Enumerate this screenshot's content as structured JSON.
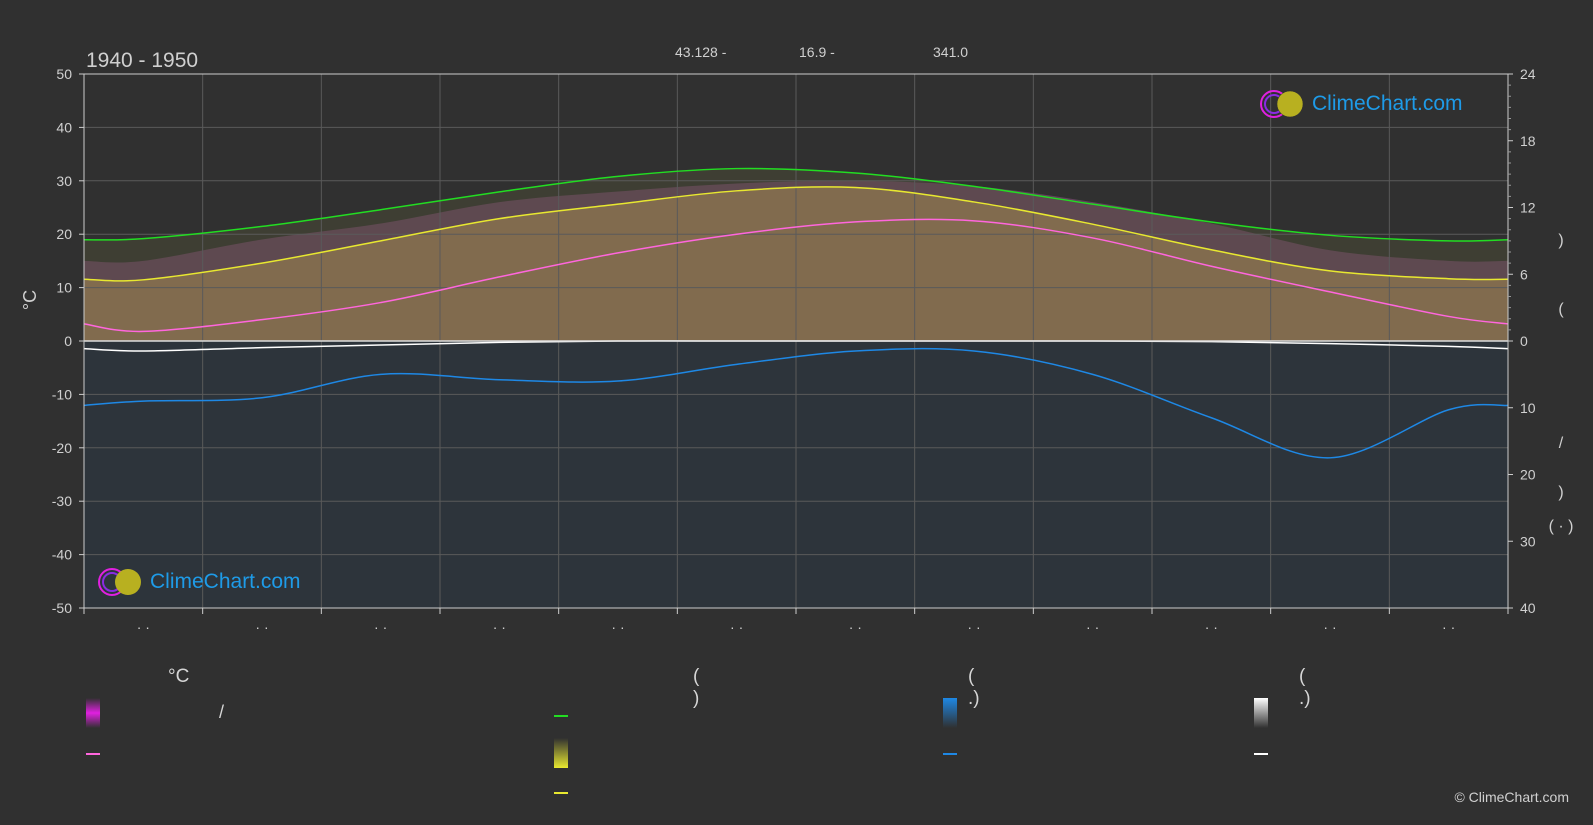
{
  "header": {
    "period": "1940 - 1950",
    "coords": [
      "43.128 -",
      "16.9 -",
      "341.0"
    ]
  },
  "brand": {
    "logo_text": "ClimeChart.com",
    "copyright": "© ClimeChart.com"
  },
  "legend": {
    "temp_head": "°C",
    "sun_head": "(          )",
    "rain_head": "(   .)",
    "snow_head": "(   .)",
    "slash": "/"
  },
  "colors": {
    "background": "#303030",
    "grid": "#5a5a5a",
    "daylight": "#22dd22",
    "sunshine": "#e8e830",
    "sunshine_band": "#8b8b2c",
    "temp_max_band": "#c060b0",
    "temp_mean": "#ff66dd",
    "precip": "#1e88e5",
    "snow": "#ffffff",
    "accent_magenta": "#e020e0",
    "logo_blue": "#1e9be8"
  },
  "chart_data": {
    "type": "line",
    "title": "1940 - 1950",
    "ylabel": "°C",
    "ylim": [
      -50,
      50
    ],
    "yticks": [
      50,
      40,
      30,
      20,
      10,
      0,
      -10,
      -20,
      -30,
      -40,
      -50
    ],
    "y2_upper_ticks": [
      24,
      18,
      12,
      6,
      0
    ],
    "y2_lower_ticks": [
      10,
      20,
      30,
      40
    ],
    "month_tick_labels": [
      "· ·",
      "· ·",
      "· ·",
      "· ·",
      "· ·",
      "· ·",
      "· ·",
      "· ·",
      "· ·",
      "· ·",
      "· ·",
      "· ·"
    ],
    "months": 12,
    "series": [
      {
        "key": "daylight",
        "unit": "hours",
        "axis": "right-upper",
        "values": [
          9.2,
          10.3,
          11.8,
          13.4,
          14.8,
          15.5,
          15.1,
          13.9,
          12.3,
          10.7,
          9.5,
          9.0
        ]
      },
      {
        "key": "sunshine",
        "unit": "hours",
        "axis": "right-upper",
        "values": [
          5.5,
          7.0,
          9.0,
          11.0,
          12.3,
          13.5,
          13.8,
          12.5,
          10.5,
          8.2,
          6.3,
          5.6
        ]
      },
      {
        "key": "temp_mean",
        "unit": "°C",
        "axis": "left",
        "values": [
          1.8,
          4.0,
          7.2,
          12.0,
          16.5,
          20.0,
          22.3,
          22.5,
          19.3,
          14.0,
          9.2,
          4.6
        ]
      },
      {
        "key": "temp_max_top",
        "unit": "°C",
        "axis": "left",
        "values": [
          15.0,
          19.0,
          22.0,
          26.0,
          28.0,
          29.5,
          30.0,
          29.0,
          26.0,
          22.0,
          17.0,
          15.0
        ]
      },
      {
        "key": "precip",
        "unit": "mm/day",
        "axis": "right-lower",
        "values": [
          -9.0,
          -8.5,
          -5.0,
          -5.8,
          -6.0,
          -3.5,
          -1.5,
          -1.5,
          -5.0,
          -11.5,
          -17.5,
          -10.3
        ]
      },
      {
        "key": "snow",
        "unit": "cm/day",
        "axis": "right-lower",
        "values": [
          -1.5,
          -1.0,
          -0.6,
          -0.2,
          0,
          0,
          0,
          0,
          0,
          -0.1,
          -0.4,
          -0.8
        ]
      }
    ]
  }
}
